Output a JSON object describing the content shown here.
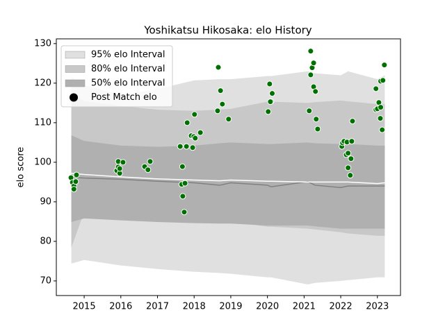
{
  "chart_data": {
    "type": "band",
    "title": "Yoshikatsu Hikosaka: elo History",
    "ylabel": "elo score",
    "xlim": [
      2014.24,
      2023.63
    ],
    "xticks": [
      2015,
      2016,
      2017,
      2018,
      2019,
      2020,
      2021,
      2022,
      2023
    ],
    "ylim": [
      66.3,
      131.2
    ],
    "yticks": [
      70,
      80,
      90,
      100,
      110,
      120,
      130
    ],
    "legend": "upper left",
    "x": [
      2014.65,
      2015.0,
      2016.0,
      2017.0,
      2018.0,
      2018.7,
      2019.0,
      2020.0,
      2020.1,
      2021.1,
      2021.3,
      2022.0,
      2022.2,
      2023.0,
      2023.2
    ],
    "series": [
      {
        "name": "95% elo Interval",
        "kind": "band",
        "color": "#e0e0e0",
        "lower": [
          74.4,
          75.3,
          73.9,
          73.0,
          72.3,
          72.0,
          71.8,
          70.9,
          70.9,
          69.1,
          69.5,
          70.0,
          70.2,
          70.9,
          70.9
        ],
        "upper": [
          121.6,
          119.5,
          117.0,
          118.5,
          120.7,
          121.0,
          121.0,
          121.8,
          121.8,
          123.0,
          122.5,
          122.0,
          123.0,
          121.0,
          122.0
        ]
      },
      {
        "name": "80% elo Interval",
        "kind": "band",
        "color": "#c8c8c8",
        "lower": [
          78.4,
          87.5,
          87.5,
          86.7,
          85.0,
          85.0,
          85.0,
          83.7,
          83.7,
          83.2,
          83.0,
          82.3,
          82.0,
          81.4,
          81.4
        ],
        "upper": [
          117.0,
          115.5,
          114.2,
          113.3,
          113.0,
          113.3,
          113.5,
          115.3,
          115.3,
          115.0,
          115.2,
          115.6,
          115.4,
          114.7,
          114.7
        ]
      },
      {
        "name": "50% elo Interval",
        "kind": "band",
        "color": "#b0b0b0",
        "lower": [
          84.9,
          85.8,
          85.3,
          84.9,
          84.6,
          84.5,
          84.5,
          84.0,
          84.0,
          84.0,
          83.8,
          83.2,
          83.2,
          83.2,
          83.2
        ],
        "upper": [
          106.8,
          105.4,
          104.2,
          103.9,
          104.2,
          104.8,
          105.0,
          104.6,
          104.6,
          105.0,
          104.8,
          104.6,
          104.6,
          104.2,
          104.2
        ]
      },
      {
        "kind": "line",
        "color": "#808080",
        "values": [
          96.2,
          96.0,
          95.7,
          95.2,
          94.8,
          94.2,
          94.8,
          94.2,
          93.8,
          95.1,
          94.2,
          93.6,
          94.0,
          94.0,
          94.0
        ]
      },
      {
        "kind": "line",
        "color": "#ffffff",
        "values": [
          97.2,
          96.9,
          96.3,
          95.8,
          95.5,
          95.3,
          95.5,
          95.2,
          95.2,
          95.0,
          95.0,
          95.0,
          95.0,
          94.6,
          94.8
        ]
      },
      {
        "name": "Post Match elo",
        "kind": "points",
        "color": "#007000",
        "legend_color": "#000000",
        "x": [
          2014.64,
          2014.68,
          2014.72,
          2014.72,
          2014.77,
          2014.79,
          2015.89,
          2015.93,
          2015.97,
          2015.93,
          2015.97,
          2016.06,
          2016.65,
          2016.74,
          2016.8,
          2017.62,
          2017.68,
          2017.66,
          2017.69,
          2017.73,
          2017.75,
          2017.79,
          2017.81,
          2017.92,
          2017.96,
          2018.01,
          2017.99,
          2018.03,
          2018.17,
          2018.64,
          2018.66,
          2018.72,
          2018.77,
          2018.94,
          2020.02,
          2020.06,
          2020.1,
          2020.13,
          2020.08,
          2021.14,
          2021.18,
          2021.18,
          2021.22,
          2021.26,
          2021.26,
          2021.31,
          2021.33,
          2021.37,
          2022.03,
          2022.05,
          2022.09,
          2022.15,
          2022.17,
          2022.2,
          2022.2,
          2022.26,
          2022.28,
          2022.3,
          2022.32,
          2022.96,
          2022.96,
          2023.0,
          2023.04,
          2023.08,
          2023.09,
          2023.09,
          2023.13,
          2023.15,
          2023.19
        ],
        "values": [
          96.1,
          94.9,
          94.0,
          93.2,
          95.1,
          96.8,
          97.9,
          98.8,
          97.2,
          100.2,
          98.4,
          100.0,
          98.9,
          98.1,
          100.2,
          104.0,
          98.9,
          94.4,
          91.4,
          87.4,
          94.7,
          104.0,
          110.0,
          106.7,
          103.7,
          112.1,
          106.5,
          106.1,
          107.5,
          113.0,
          124.0,
          118.1,
          114.7,
          110.9,
          112.8,
          119.8,
          115.4,
          117.4,
          115.3,
          113.0,
          128.1,
          122.1,
          123.9,
          125.1,
          119.1,
          117.9,
          110.9,
          108.4,
          104.0,
          104.9,
          105.3,
          101.9,
          105.1,
          102.3,
          98.6,
          96.7,
          100.9,
          105.3,
          110.4,
          118.6,
          113.3,
          113.5,
          115.1,
          111.1,
          120.5,
          113.9,
          108.2,
          120.7,
          124.6
        ]
      }
    ]
  }
}
